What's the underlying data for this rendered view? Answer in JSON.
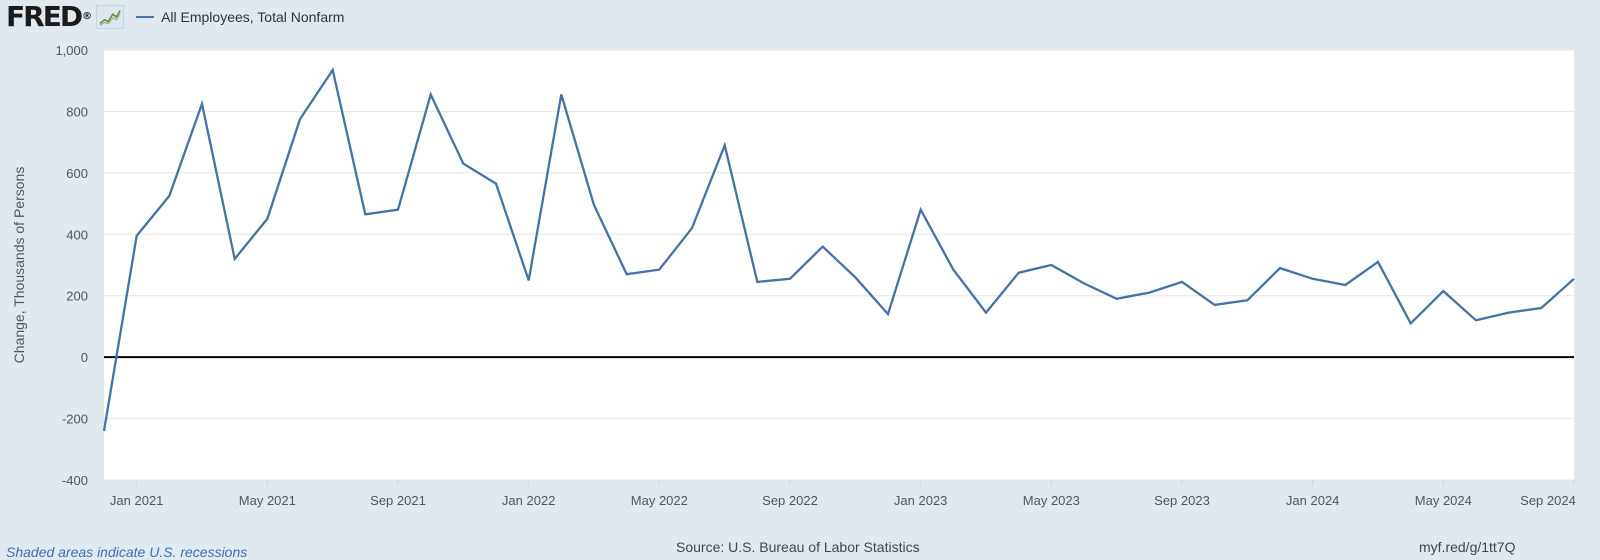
{
  "header": {
    "logo_text": "FRED",
    "logo_mark": "®",
    "legend_label": "All Employees, Total Nonfarm",
    "series_color": "#4572a7",
    "icon": "mini-line-chart-icon"
  },
  "footer": {
    "recession_note": "Shaded areas indicate U.S. recessions",
    "source": "Source: U.S. Bureau of Labor Statistics",
    "short_link": "myf.red/g/1tt7Q"
  },
  "chart_data": {
    "type": "line",
    "ylabel": "Change, Thousands of Persons",
    "ylim": [
      -400,
      1000
    ],
    "y_ticks": [
      -400,
      -200,
      0,
      200,
      400,
      600,
      800,
      1000
    ],
    "y_tick_labels": [
      "-400",
      "-200",
      "0",
      "200",
      "400",
      "600",
      "800",
      "1,000"
    ],
    "x_tick_labels": [
      "Jan 2021",
      "May 2021",
      "Sep 2021",
      "Jan 2022",
      "May 2022",
      "Sep 2022",
      "Jan 2023",
      "May 2023",
      "Sep 2023",
      "Jan 2024",
      "May 2024",
      "Sep 2024"
    ],
    "zero_line": true,
    "grid": true,
    "x": [
      "2020-12",
      "2021-01",
      "2021-02",
      "2021-03",
      "2021-04",
      "2021-05",
      "2021-06",
      "2021-07",
      "2021-08",
      "2021-09",
      "2021-10",
      "2021-11",
      "2021-12",
      "2022-01",
      "2022-02",
      "2022-03",
      "2022-04",
      "2022-05",
      "2022-06",
      "2022-07",
      "2022-08",
      "2022-09",
      "2022-10",
      "2022-11",
      "2022-12",
      "2023-01",
      "2023-02",
      "2023-03",
      "2023-04",
      "2023-05",
      "2023-06",
      "2023-07",
      "2023-08",
      "2023-09",
      "2023-10",
      "2023-11",
      "2023-12",
      "2024-01",
      "2024-02",
      "2024-03",
      "2024-04",
      "2024-05",
      "2024-06",
      "2024-07",
      "2024-08",
      "2024-09"
    ],
    "series": [
      {
        "name": "All Employees, Total Nonfarm",
        "values": [
          -240,
          395,
          525,
          825,
          320,
          450,
          775,
          935,
          465,
          480,
          855,
          630,
          565,
          250,
          855,
          495,
          270,
          285,
          420,
          690,
          245,
          255,
          360,
          260,
          140,
          480,
          285,
          145,
          275,
          300,
          240,
          190,
          210,
          245,
          170,
          185,
          290,
          255,
          235,
          310,
          110,
          215,
          120,
          145,
          160,
          255
        ]
      }
    ]
  }
}
